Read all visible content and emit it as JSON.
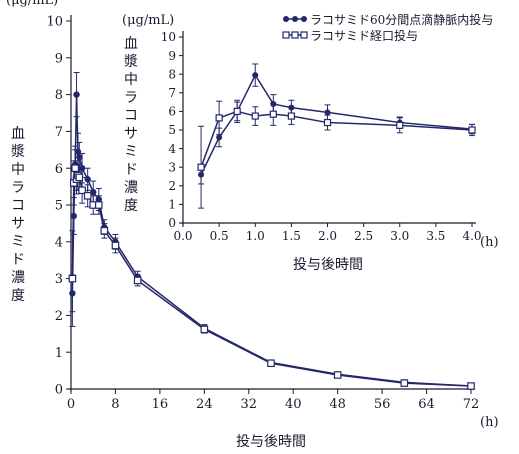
{
  "chart_data": [
    {
      "type": "line",
      "title": "",
      "xlabel": "投与後時間",
      "x_unit_label": "(h)",
      "ylabel": "血漿中ラコサミド濃度",
      "y_unit_label": "(μg/mL)",
      "xlim": [
        0,
        72
      ],
      "ylim": [
        0,
        10
      ],
      "x_ticks": [
        0,
        8,
        16,
        24,
        32,
        40,
        48,
        56,
        64,
        72
      ],
      "y_ticks": [
        0,
        1,
        2,
        3,
        4,
        5,
        6,
        7,
        8,
        9,
        10
      ],
      "grid": false,
      "legend": "none",
      "colors": {
        "iv": "#23286a",
        "oral": "#23286a",
        "axis": "#1a1a2e"
      },
      "series": [
        {
          "name": "ラコサミド60分間点滴静脈内投与",
          "marker": "filled-circle",
          "x": [
            0.25,
            0.5,
            0.75,
            1.0,
            1.25,
            1.5,
            2,
            3,
            4,
            5,
            6,
            8,
            12,
            24,
            36,
            48,
            60,
            72
          ],
          "y": [
            2.6,
            4.7,
            6.1,
            8.0,
            6.45,
            6.3,
            6.0,
            5.7,
            5.35,
            5.15,
            4.4,
            4.0,
            3.05,
            1.65,
            0.72,
            0.4,
            0.18,
            0.08
          ],
          "err": [
            0.5,
            0.5,
            0.5,
            0.6,
            0.5,
            0.4,
            0.4,
            0.3,
            0.3,
            0.3,
            0.2,
            0.2,
            0.15,
            0.1,
            0.06,
            0.06,
            0.04,
            0.03
          ]
        },
        {
          "name": "ラコサミド経口投与",
          "marker": "open-square",
          "x": [
            0.25,
            0.5,
            0.75,
            1.0,
            1.25,
            1.5,
            2,
            3,
            4,
            5,
            6,
            8,
            12,
            24,
            36,
            48,
            60,
            72
          ],
          "y": [
            3.0,
            5.6,
            6.0,
            5.7,
            5.8,
            5.75,
            5.4,
            5.25,
            5.0,
            5.0,
            4.3,
            3.9,
            2.95,
            1.62,
            0.7,
            0.38,
            0.16,
            0.08
          ],
          "err": [
            1.3,
            0.6,
            0.5,
            0.4,
            0.4,
            0.35,
            0.35,
            0.3,
            0.25,
            0.25,
            0.2,
            0.2,
            0.15,
            0.1,
            0.06,
            0.06,
            0.04,
            0.03
          ]
        }
      ]
    },
    {
      "type": "line",
      "title": "",
      "xlabel": "投与後時間",
      "x_unit_label": "(h)",
      "ylabel": "血漿中ラコサミド濃度",
      "y_unit_label": "(μg/mL)",
      "xlim": [
        0,
        4
      ],
      "ylim": [
        0,
        10
      ],
      "x_ticks": [
        0.0,
        0.5,
        1.0,
        1.5,
        2.0,
        2.5,
        3.0,
        3.5,
        4.0
      ],
      "x_tick_labels": [
        "0.0",
        "0.5",
        "1.0",
        "1.5",
        "2.0",
        "2.5",
        "3.0",
        "3.5",
        "4.0"
      ],
      "y_ticks": [
        0,
        1,
        2,
        3,
        4,
        5,
        6,
        7,
        8,
        9,
        10
      ],
      "grid": false,
      "legend": "top-right",
      "series": [
        {
          "name": "ラコサミド60分間点滴静脈内投与",
          "marker": "filled-circle",
          "x": [
            0.25,
            0.5,
            0.75,
            1.0,
            1.25,
            1.5,
            2.0,
            3.0,
            4.0
          ],
          "y": [
            2.6,
            4.6,
            6.0,
            7.95,
            6.4,
            6.2,
            5.95,
            5.4,
            5.05
          ],
          "err": [
            0.5,
            0.5,
            0.5,
            0.6,
            0.5,
            0.4,
            0.4,
            0.3,
            0.25
          ]
        },
        {
          "name": "ラコサミド経口投与",
          "marker": "open-square",
          "x": [
            0.25,
            0.5,
            0.75,
            1.0,
            1.25,
            1.5,
            2.0,
            3.0,
            4.0
          ],
          "y": [
            3.0,
            5.65,
            6.0,
            5.75,
            5.85,
            5.75,
            5.4,
            5.25,
            5.0
          ],
          "err": [
            2.2,
            0.9,
            0.6,
            0.5,
            0.6,
            0.45,
            0.4,
            0.4,
            0.3
          ]
        }
      ]
    }
  ]
}
